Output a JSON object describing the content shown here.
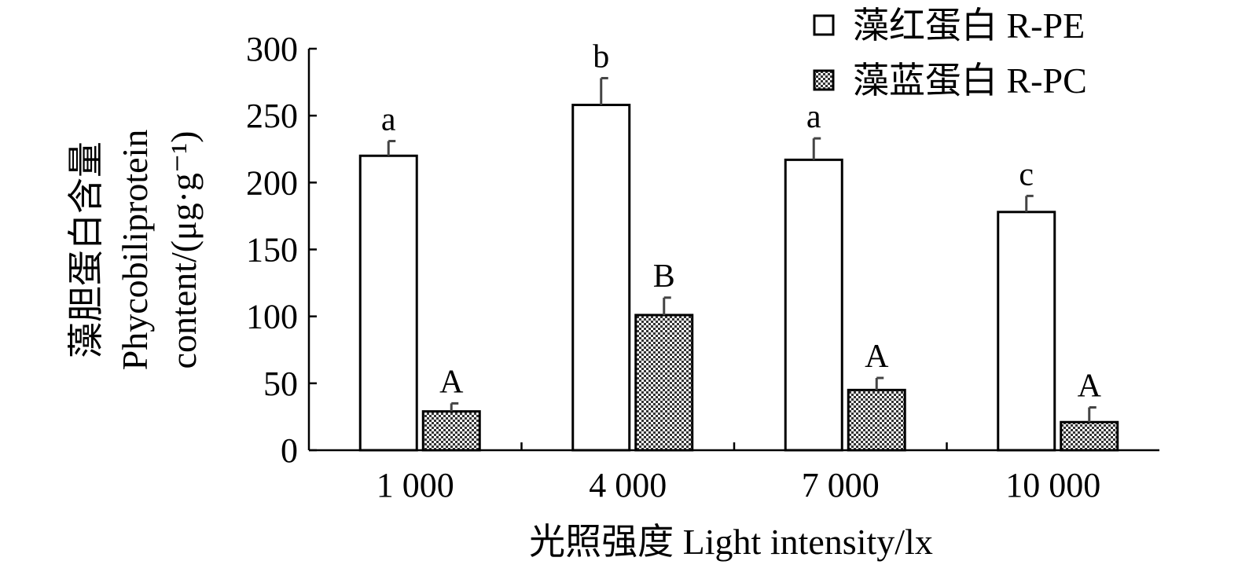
{
  "chart_data": {
    "type": "bar",
    "xlabel": "光照强度 Light intensity/lx",
    "ylabel_lines": [
      "藻胆蛋白含量",
      "Phycobiliprotein",
      "content/(μg·g⁻¹)"
    ],
    "categories": [
      "1 000",
      "4 000",
      "7 000",
      "10 000"
    ],
    "ylim": [
      0,
      300
    ],
    "yticks": [
      "0",
      "50",
      "100",
      "150",
      "200",
      "250",
      "300"
    ],
    "grid": false,
    "legend_position": "top-right",
    "series": [
      {
        "name": "藻红蛋白 R-PE",
        "fill": "#ffffff",
        "values": [
          220,
          258,
          217,
          178
        ],
        "errors": [
          11,
          20,
          16,
          12
        ],
        "sig_labels": [
          "a",
          "b",
          "a",
          "c"
        ]
      },
      {
        "name": "藻蓝蛋白 R-PC",
        "fill": "checkered",
        "values": [
          29,
          101,
          45,
          21
        ],
        "errors": [
          6,
          13,
          9,
          11
        ],
        "sig_labels": [
          "A",
          "B",
          "A",
          "A"
        ]
      }
    ]
  }
}
